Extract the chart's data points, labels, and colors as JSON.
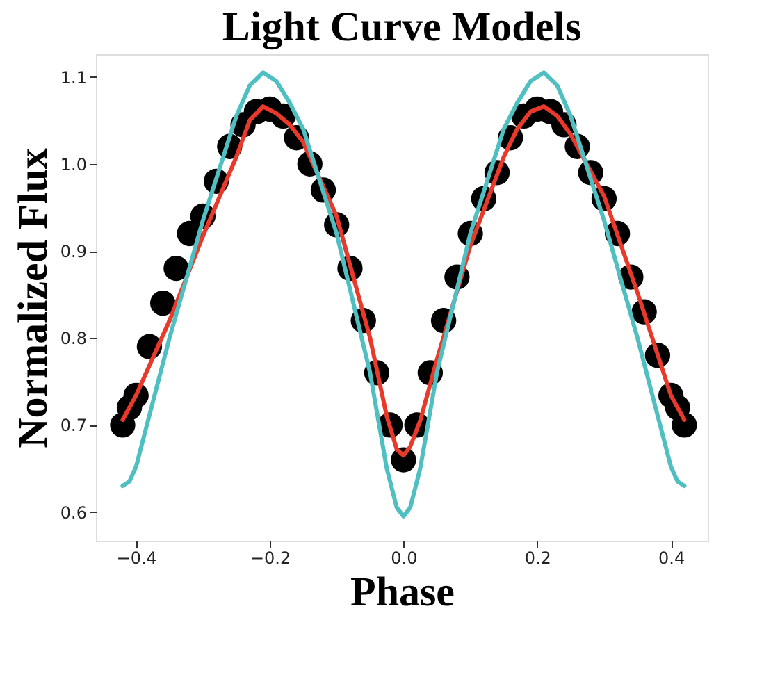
{
  "chart_data": {
    "type": "line",
    "title": "Light Curve Models",
    "xlabel": "Phase",
    "ylabel": "Normalized Flux",
    "xlim": [
      -0.46,
      0.455
    ],
    "ylim": [
      0.567,
      1.126
    ],
    "xticks": [
      {
        "value": -0.4,
        "label": "−0.4"
      },
      {
        "value": -0.2,
        "label": "−0.2"
      },
      {
        "value": 0.0,
        "label": "0.0"
      },
      {
        "value": 0.2,
        "label": "0.2"
      },
      {
        "value": 0.4,
        "label": "0.4"
      }
    ],
    "yticks": [
      {
        "value": 0.6,
        "label": "0.6"
      },
      {
        "value": 0.7,
        "label": "0.7"
      },
      {
        "value": 0.8,
        "label": "0.8"
      },
      {
        "value": 0.9,
        "label": "0.9"
      },
      {
        "value": 1.0,
        "label": "1.0"
      },
      {
        "value": 1.1,
        "label": "1.1"
      }
    ],
    "grid": false,
    "line_style": "solid",
    "series": [
      {
        "type": "scatter",
        "marker": "circle",
        "color": "#000000",
        "x": [
          -0.42,
          -0.41,
          -0.4,
          -0.38,
          -0.36,
          -0.34,
          -0.32,
          -0.3,
          -0.28,
          -0.26,
          -0.24,
          -0.22,
          -0.2,
          -0.18,
          -0.16,
          -0.14,
          -0.12,
          -0.1,
          -0.08,
          -0.06,
          -0.04,
          -0.02,
          0.0,
          0.02,
          0.04,
          0.06,
          0.08,
          0.1,
          0.12,
          0.14,
          0.16,
          0.18,
          0.2,
          0.22,
          0.24,
          0.26,
          0.28,
          0.3,
          0.32,
          0.34,
          0.36,
          0.38,
          0.4,
          0.41,
          0.42
        ],
        "values": [
          0.7,
          0.72,
          0.734,
          0.79,
          0.84,
          0.88,
          0.92,
          0.94,
          0.98,
          1.02,
          1.045,
          1.06,
          1.063,
          1.055,
          1.03,
          1.0,
          0.97,
          0.93,
          0.88,
          0.82,
          0.76,
          0.7,
          0.66,
          0.7,
          0.76,
          0.82,
          0.87,
          0.92,
          0.96,
          0.99,
          1.03,
          1.055,
          1.063,
          1.06,
          1.045,
          1.02,
          0.99,
          0.96,
          0.92,
          0.87,
          0.83,
          0.78,
          0.734,
          0.72,
          0.7
        ]
      },
      {
        "color": "#e8392a",
        "x": [
          -0.42,
          -0.4,
          -0.35,
          -0.3,
          -0.25,
          -0.23,
          -0.21,
          -0.19,
          -0.17,
          -0.15,
          -0.1,
          -0.05,
          -0.025,
          -0.01,
          0.0,
          0.01,
          0.025,
          0.05,
          0.1,
          0.15,
          0.17,
          0.19,
          0.21,
          0.23,
          0.25,
          0.3,
          0.35,
          0.4,
          0.42
        ],
        "values": [
          0.706,
          0.734,
          0.82,
          0.917,
          1.008,
          1.05,
          1.066,
          1.058,
          1.045,
          1.025,
          0.94,
          0.8,
          0.71,
          0.672,
          0.665,
          0.675,
          0.705,
          0.775,
          0.906,
          1.008,
          1.04,
          1.06,
          1.066,
          1.055,
          1.034,
          0.963,
          0.852,
          0.734,
          0.706
        ]
      },
      {
        "color": "#4fbfc2",
        "x": [
          -0.42,
          -0.41,
          -0.4,
          -0.35,
          -0.3,
          -0.25,
          -0.23,
          -0.21,
          -0.19,
          -0.17,
          -0.15,
          -0.1,
          -0.05,
          -0.025,
          -0.01,
          0.0,
          0.01,
          0.025,
          0.05,
          0.1,
          0.15,
          0.17,
          0.19,
          0.21,
          0.23,
          0.25,
          0.3,
          0.35,
          0.4,
          0.41,
          0.42
        ],
        "values": [
          0.63,
          0.635,
          0.652,
          0.8,
          0.935,
          1.055,
          1.09,
          1.105,
          1.095,
          1.07,
          1.04,
          0.92,
          0.76,
          0.65,
          0.605,
          0.595,
          0.605,
          0.65,
          0.76,
          0.92,
          1.04,
          1.07,
          1.095,
          1.105,
          1.09,
          1.055,
          0.935,
          0.8,
          0.652,
          0.635,
          0.63
        ]
      }
    ]
  }
}
